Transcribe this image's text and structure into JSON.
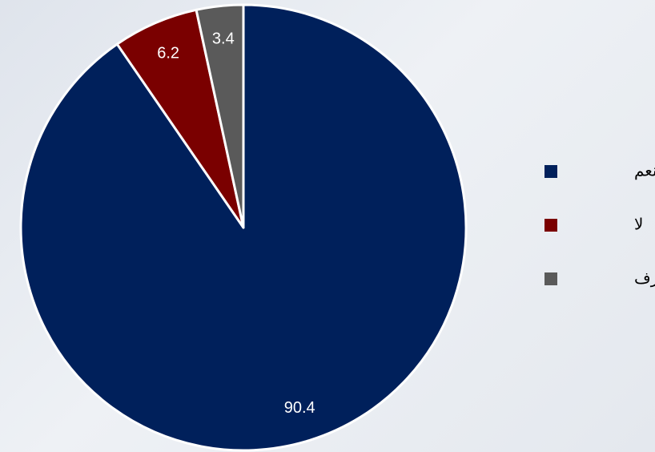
{
  "chart_data": {
    "type": "pie",
    "categories": [
      "نعم",
      "لا",
      "لا أعرف"
    ],
    "values": [
      90.4,
      6.2,
      3.4
    ],
    "colors": [
      "#00205b",
      "#7a0000",
      "#5a5a5a"
    ],
    "legend": "right"
  }
}
